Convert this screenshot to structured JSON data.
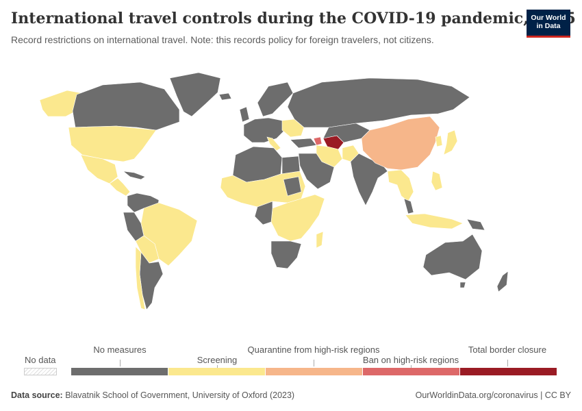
{
  "title": "International travel controls during the COVID-19 pandemic, 1095",
  "subtitle": "Record restrictions on international travel. Note: this records policy for foreign travelers, not citizens.",
  "logo": {
    "line1": "Our World",
    "line2": "in Data"
  },
  "legend": {
    "no_data": "No data",
    "categories": [
      {
        "label": "No measures",
        "color": "#6d6d6d"
      },
      {
        "label": "Screening",
        "color": "#fbe88e"
      },
      {
        "label": "Quarantine from high-risk regions",
        "color": "#f6b68a"
      },
      {
        "label": "Ban on high-risk regions",
        "color": "#dd6868"
      },
      {
        "label": "Total border closure",
        "color": "#9a1b24"
      }
    ]
  },
  "colors": {
    "no_measures": "#6d6d6d",
    "screening": "#fbe88e",
    "quarantine": "#f6b68a",
    "ban": "#dd6868",
    "closure": "#9a1b24",
    "brand": "#002147",
    "brand_accent": "#ce261e"
  },
  "footer": {
    "source_label": "Data source:",
    "source_text": "Blavatnik School of Government, University of Oxford (2023)",
    "url_text": "OurWorldinData.org/coronavirus | CC BY"
  }
}
